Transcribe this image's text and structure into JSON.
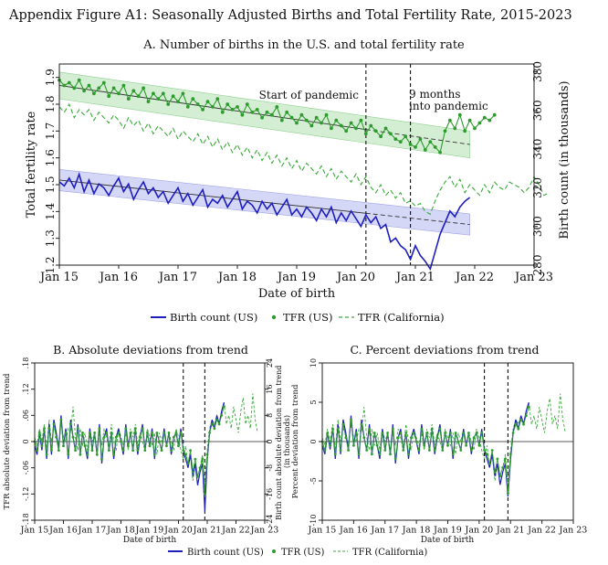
{
  "figure_title": "Appendix Figure A1: Seasonally Adjusted Births and Total Fertility Rate, 2015-2023",
  "colors": {
    "blue": "#1f1fbf",
    "green": "#2e9b2e",
    "green_dash": "#3aaa3a",
    "blue_band": "#c7c9f3",
    "green_band": "#c6e8c6"
  },
  "legend": {
    "birth": "Birth count (US)",
    "tfr": "TFR (US)",
    "cal": "TFR (California)"
  },
  "chart_data": [
    {
      "type": "line",
      "title": "A. Number of births in the U.S. and total fertility rate",
      "xlabel": "Date of birth",
      "ylabel_left": "Total fertility rate",
      "ylabel_right": "Birth count (in thousands)",
      "x_ticks": [
        "Jan 15",
        "Jan 16",
        "Jan 17",
        "Jan 18",
        "Jan 19",
        "Jan 20",
        "Jan 21",
        "Jan 22",
        "Jan 23"
      ],
      "x_range": [
        "2015-01",
        "2023-01"
      ],
      "y_left_range": [
        1.2,
        1.95
      ],
      "y_left_ticks": [
        "1.2",
        "1.3",
        "1.4",
        "1.5",
        "1.6",
        "1.7",
        "1.8",
        "1.9"
      ],
      "y_right_range": [
        280,
        384
      ],
      "y_right_ticks": [
        "280",
        "300",
        "320",
        "340",
        "360",
        "380"
      ],
      "annotations": [
        {
          "date": "2020-03",
          "label": "Start of pandemic"
        },
        {
          "date": "2020-12",
          "label": "9 months into pandemic"
        }
      ],
      "series": [
        {
          "name": "Birth count (US)",
          "axis": "right",
          "start": "2015-01",
          "values": [
            323,
            321,
            325,
            320,
            327,
            318,
            324,
            317,
            322,
            320,
            316,
            321,
            325,
            318,
            322,
            314,
            319,
            323,
            317,
            320,
            315,
            318,
            312,
            316,
            320,
            313,
            317,
            311,
            315,
            319,
            310,
            314,
            312,
            316,
            310,
            314,
            318,
            309,
            313,
            311,
            307,
            313,
            309,
            312,
            306,
            310,
            314,
            306,
            309,
            305,
            310,
            307,
            303,
            309,
            305,
            310,
            302,
            307,
            303,
            308,
            304,
            300,
            306,
            302,
            305,
            299,
            301,
            292,
            294,
            290,
            288,
            283,
            290,
            285,
            282,
            278,
            287,
            296,
            302,
            308,
            305,
            310,
            313,
            315
          ]
        },
        {
          "name": "TFR (US)",
          "axis": "left",
          "start": "2015-01",
          "values": [
            1.89,
            1.87,
            1.88,
            1.86,
            1.89,
            1.85,
            1.87,
            1.84,
            1.86,
            1.88,
            1.83,
            1.86,
            1.84,
            1.87,
            1.82,
            1.85,
            1.83,
            1.86,
            1.81,
            1.84,
            1.82,
            1.84,
            1.8,
            1.83,
            1.81,
            1.84,
            1.79,
            1.82,
            1.8,
            1.78,
            1.81,
            1.79,
            1.82,
            1.77,
            1.8,
            1.78,
            1.79,
            1.76,
            1.8,
            1.77,
            1.78,
            1.75,
            1.77,
            1.76,
            1.79,
            1.74,
            1.77,
            1.75,
            1.73,
            1.76,
            1.74,
            1.72,
            1.75,
            1.73,
            1.76,
            1.71,
            1.74,
            1.72,
            1.7,
            1.73,
            1.71,
            1.74,
            1.69,
            1.72,
            1.7,
            1.68,
            1.71,
            1.69,
            1.67,
            1.66,
            1.68,
            1.65,
            1.64,
            1.67,
            1.63,
            1.66,
            1.64,
            1.62,
            1.7,
            1.74,
            1.71,
            1.76,
            1.7,
            1.74,
            1.71,
            1.73,
            1.75,
            1.74,
            1.76
          ]
        },
        {
          "name": "TFR (California)",
          "axis": "left",
          "start": "2015-01",
          "values": [
            1.79,
            1.77,
            1.8,
            1.75,
            1.78,
            1.76,
            1.78,
            1.74,
            1.77,
            1.75,
            1.73,
            1.76,
            1.74,
            1.71,
            1.75,
            1.72,
            1.74,
            1.7,
            1.73,
            1.69,
            1.72,
            1.7,
            1.68,
            1.71,
            1.67,
            1.7,
            1.68,
            1.66,
            1.69,
            1.65,
            1.68,
            1.64,
            1.67,
            1.63,
            1.66,
            1.62,
            1.65,
            1.61,
            1.64,
            1.6,
            1.63,
            1.59,
            1.62,
            1.58,
            1.61,
            1.57,
            1.6,
            1.56,
            1.59,
            1.55,
            1.58,
            1.56,
            1.54,
            1.57,
            1.53,
            1.56,
            1.52,
            1.55,
            1.53,
            1.51,
            1.54,
            1.5,
            1.53,
            1.49,
            1.47,
            1.5,
            1.46,
            1.48,
            1.45,
            1.47,
            1.43,
            1.44,
            1.42,
            1.43,
            1.4,
            1.39,
            1.44,
            1.48,
            1.51,
            1.53,
            1.49,
            1.52,
            1.47,
            1.5,
            1.48,
            1.46,
            1.5,
            1.47,
            1.51,
            1.49,
            1.48,
            1.51,
            1.5,
            1.49,
            1.47,
            1.49,
            1.53,
            1.5,
            1.46,
            1.47
          ]
        },
        {
          "name": "TFR (US) trend",
          "axis": "left",
          "kind": "trend",
          "from": [
            "2015-01",
            1.87
          ],
          "to": [
            "2021-12",
            1.65
          ],
          "band": 0.05
        },
        {
          "name": "Birth count (US) trend",
          "axis": "right",
          "kind": "trend",
          "from": [
            "2015-01",
            324
          ],
          "to": [
            "2021-12",
            301
          ],
          "band": 5.5
        }
      ]
    },
    {
      "type": "line",
      "title": "B. Absolute deviations from trend",
      "xlabel": "Date of birth",
      "ylabel_left": "TFR absolute deviation from trend",
      "ylabel_right": "Birth count absolute deviation from trend (in thousands)",
      "x_ticks": [
        "Jan 15",
        "Jan 16",
        "Jan 17",
        "Jan 18",
        "Jan 19",
        "Jan 20",
        "Jan 21",
        "Jan 22",
        "Jan 23"
      ],
      "y_left_range": [
        -0.18,
        0.18
      ],
      "y_left_ticks": [
        "-.18",
        "-.12",
        "-.06",
        "0",
        ".06",
        ".12",
        ".18"
      ],
      "y_right_range": [
        -24,
        24
      ],
      "y_right_ticks": [
        "-24",
        "-16",
        "-8",
        "0",
        "8",
        "16",
        "24"
      ],
      "series": [
        {
          "name": "Birth count (US)",
          "start": "2015-01",
          "values": [
            -0.01,
            -0.03,
            0.02,
            -0.02,
            0.03,
            -0.04,
            0.04,
            -0.03,
            0.05,
            0.02,
            -0.02,
            0.06,
            -0.01,
            0.03,
            -0.04,
            0.05,
            0.01,
            -0.02,
            0.04,
            -0.03,
            0.02,
            -0.01,
            -0.04,
            0.03,
            -0.02,
            0.02,
            -0.03,
            0.04,
            -0.05,
            0.01,
            0.03,
            -0.02,
            0.02,
            -0.04,
            0.01,
            0.03,
            0.0,
            -0.03,
            0.04,
            -0.01,
            0.02,
            -0.02,
            0.03,
            -0.03,
            0.01,
            0.04,
            -0.02,
            0.02,
            -0.01,
            0.03,
            -0.04,
            0.02,
            0.0,
            -0.02,
            0.03,
            -0.01,
            0.02,
            -0.03,
            0.01,
            0.02,
            -0.01,
            0.03,
            -0.02,
            -0.04,
            -0.06,
            -0.03,
            -0.08,
            -0.05,
            -0.1,
            -0.07,
            -0.05,
            -0.16,
            -0.04,
            0.02,
            0.05,
            0.03,
            0.06,
            0.04,
            0.07,
            0.09
          ]
        },
        {
          "name": "TFR (US)",
          "start": "2015-01",
          "values": [
            0.0,
            -0.02,
            0.02,
            -0.01,
            0.03,
            -0.03,
            0.03,
            -0.02,
            0.04,
            0.01,
            -0.02,
            0.05,
            -0.01,
            0.02,
            -0.03,
            0.04,
            0.01,
            -0.02,
            0.03,
            -0.03,
            0.02,
            -0.01,
            -0.03,
            0.02,
            -0.02,
            0.02,
            -0.03,
            0.03,
            -0.04,
            0.01,
            0.02,
            -0.02,
            0.02,
            -0.03,
            0.01,
            0.02,
            0.0,
            -0.02,
            0.03,
            -0.01,
            0.02,
            -0.02,
            0.03,
            -0.02,
            0.01,
            0.03,
            -0.02,
            0.02,
            -0.01,
            0.02,
            -0.03,
            0.02,
            0.0,
            -0.02,
            0.02,
            -0.01,
            0.02,
            -0.02,
            0.01,
            0.02,
            -0.01,
            0.02,
            -0.02,
            -0.03,
            -0.05,
            -0.02,
            -0.07,
            -0.04,
            -0.08,
            -0.06,
            -0.04,
            -0.12,
            -0.03,
            0.02,
            0.04,
            0.03,
            0.05,
            0.04,
            0.06,
            0.08
          ]
        },
        {
          "name": "TFR (California)",
          "start": "2015-01",
          "values": [
            0.01,
            -0.01,
            0.03,
            0.0,
            0.04,
            -0.02,
            0.05,
            0.0,
            0.03,
            0.02,
            -0.01,
            0.04,
            0.01,
            0.0,
            0.03,
            0.02,
            0.08,
            0.01,
            -0.02,
            0.03,
            -0.01,
            0.02,
            -0.02,
            0.03,
            0.0,
            0.02,
            -0.03,
            0.02,
            -0.01,
            0.03,
            0.01,
            -0.02,
            0.04,
            0.0,
            -0.02,
            0.03,
            0.01,
            -0.01,
            0.02,
            -0.02,
            0.03,
            0.01,
            0.04,
            -0.01,
            0.02,
            0.0,
            -0.02,
            0.03,
            0.01,
            -0.01,
            0.02,
            -0.03,
            0.02,
            0.0,
            0.03,
            -0.01,
            0.02,
            0.0,
            -0.02,
            0.03,
            0.01,
            -0.02,
            -0.04,
            -0.01,
            -0.06,
            -0.03,
            -0.09,
            -0.05,
            -0.08,
            -0.06,
            -0.03,
            -0.1,
            -0.02,
            0.03,
            0.05,
            0.04,
            0.06,
            0.04,
            0.07,
            0.09,
            0.04,
            0.06,
            0.03,
            0.08,
            0.05,
            0.02,
            0.07,
            0.1,
            0.04,
            0.06,
            0.03,
            0.11,
            0.05,
            0.02
          ]
        }
      ]
    },
    {
      "type": "line",
      "title": "C. Percent deviations from trend",
      "xlabel": "Date of birth",
      "ylabel_left": "Percent deviation from trend",
      "x_ticks": [
        "Jan 15",
        "Jan 16",
        "Jan 17",
        "Jan 18",
        "Jan 19",
        "Jan 20",
        "Jan 21",
        "Jan 22",
        "Jan 23"
      ],
      "y_left_range": [
        -10,
        10
      ],
      "y_left_ticks": [
        "-10",
        "-5",
        "0",
        "5",
        "10"
      ],
      "series": [
        {
          "name": "Birth count (US)",
          "start": "2015-01",
          "values": [
            -0.5,
            -1.6,
            1.1,
            -1.0,
            1.7,
            -2.2,
            2.2,
            -1.6,
            2.8,
            1.1,
            -1.1,
            3.3,
            -0.5,
            1.6,
            -2.2,
            2.8,
            0.5,
            -1.1,
            2.2,
            -1.6,
            1.1,
            -0.5,
            -2.2,
            1.6,
            -1.1,
            1.1,
            -1.6,
            2.2,
            -2.8,
            0.5,
            1.6,
            -1.1,
            1.1,
            -2.2,
            0.5,
            1.6,
            0.0,
            -1.6,
            2.2,
            -0.5,
            1.1,
            -1.1,
            1.6,
            -1.6,
            0.5,
            2.2,
            -1.1,
            1.1,
            -0.5,
            1.6,
            -2.2,
            1.1,
            0.0,
            -1.1,
            1.6,
            -0.5,
            1.1,
            -1.6,
            0.5,
            1.1,
            -0.5,
            1.6,
            -1.1,
            -2.2,
            -3.3,
            -1.6,
            -4.4,
            -2.8,
            -5.5,
            -3.9,
            -2.8,
            -7.0,
            -2.2,
            1.1,
            2.8,
            1.6,
            3.3,
            2.2,
            3.9,
            5.0
          ]
        },
        {
          "name": "TFR (US)",
          "start": "2015-01",
          "values": [
            0.0,
            -1.1,
            1.1,
            -0.5,
            1.6,
            -1.6,
            1.6,
            -1.1,
            2.2,
            0.5,
            -1.1,
            2.8,
            -0.5,
            1.1,
            -1.6,
            2.2,
            0.5,
            -1.1,
            1.6,
            -1.6,
            1.1,
            -0.5,
            -1.6,
            1.1,
            -1.1,
            1.1,
            -1.6,
            1.6,
            -2.2,
            0.5,
            1.1,
            -1.1,
            1.1,
            -1.6,
            0.5,
            1.1,
            0.0,
            -1.1,
            1.6,
            -0.5,
            1.1,
            -1.1,
            1.6,
            -1.1,
            0.5,
            1.6,
            -1.1,
            1.1,
            -0.5,
            1.1,
            -1.6,
            1.1,
            0.0,
            -1.1,
            1.1,
            -0.5,
            1.1,
            -1.1,
            0.5,
            1.1,
            -0.5,
            1.1,
            -1.1,
            -1.6,
            -2.8,
            -1.1,
            -3.9,
            -2.2,
            -4.4,
            -3.3,
            -2.2,
            -6.6,
            -1.6,
            1.1,
            2.2,
            1.6,
            2.8,
            2.2,
            3.3,
            4.4
          ]
        },
        {
          "name": "TFR (California)",
          "start": "2015-01",
          "values": [
            0.5,
            -0.5,
            1.6,
            0.0,
            2.2,
            -1.1,
            2.8,
            0.0,
            1.6,
            1.1,
            -0.5,
            2.2,
            0.5,
            0.0,
            1.6,
            1.1,
            4.4,
            0.5,
            -1.1,
            1.6,
            -0.5,
            1.1,
            -1.1,
            1.6,
            0.0,
            1.1,
            -1.6,
            1.1,
            -0.5,
            1.6,
            0.5,
            -1.1,
            2.2,
            0.0,
            -1.1,
            1.6,
            0.5,
            -0.5,
            1.1,
            -1.1,
            1.6,
            0.5,
            2.2,
            -0.5,
            1.1,
            0.0,
            -1.1,
            1.6,
            0.5,
            -0.5,
            1.1,
            -1.6,
            1.1,
            0.0,
            1.6,
            -0.5,
            1.1,
            0.0,
            -1.1,
            1.6,
            0.5,
            -1.1,
            -2.2,
            -0.5,
            -3.3,
            -1.6,
            -5.0,
            -2.8,
            -4.4,
            -3.3,
            -1.6,
            -5.5,
            -1.1,
            1.6,
            2.8,
            2.2,
            3.3,
            2.2,
            3.9,
            5.0,
            2.2,
            3.3,
            1.6,
            4.4,
            2.8,
            1.1,
            3.9,
            5.5,
            2.2,
            3.3,
            1.6,
            6.1,
            2.8,
            1.1
          ]
        }
      ]
    }
  ]
}
